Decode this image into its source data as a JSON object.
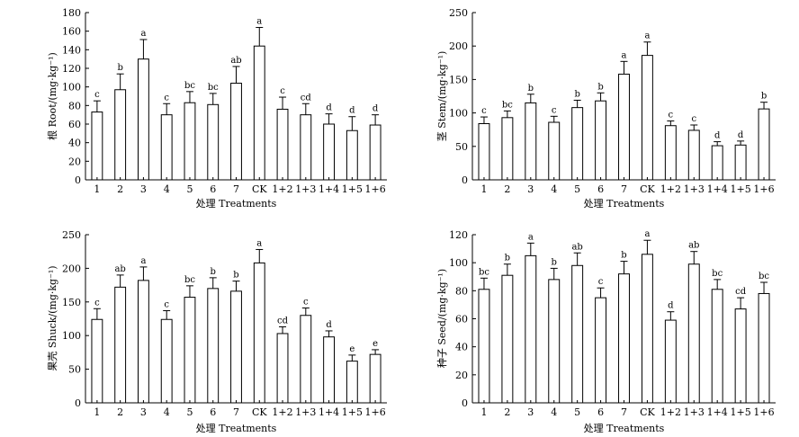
{
  "chart_data": [
    {
      "type": "bar",
      "ylabel": "根 Root/(mg·kg⁻¹)",
      "xlabel": "处理 Treatments",
      "ylim": [
        0,
        180
      ],
      "yticks": [
        0,
        20,
        40,
        60,
        80,
        100,
        120,
        140,
        160,
        180
      ],
      "categories": [
        "1",
        "2",
        "3",
        "4",
        "5",
        "6",
        "7",
        "CK",
        "1+2",
        "1+3",
        "1+4",
        "1+5",
        "1+6"
      ],
      "values": [
        73,
        97,
        130,
        70,
        83,
        81,
        104,
        144,
        76,
        70,
        60,
        53,
        59
      ],
      "errors": [
        12,
        17,
        21,
        12,
        12,
        12,
        18,
        20,
        13,
        12,
        11,
        15,
        11
      ],
      "letters": [
        "c",
        "b",
        "a",
        "c",
        "bc",
        "bc",
        "ab",
        "a",
        "c",
        "cd",
        "d",
        "d",
        "d"
      ]
    },
    {
      "type": "bar",
      "ylabel": "茎 Stem/(mg·kg⁻¹)",
      "xlabel": "处理 Treatments",
      "ylim": [
        0,
        250
      ],
      "yticks": [
        0,
        50,
        100,
        150,
        200,
        250
      ],
      "categories": [
        "1",
        "2",
        "3",
        "4",
        "5",
        "6",
        "7",
        "CK",
        "1+2",
        "1+3",
        "1+4",
        "1+5",
        "1+6"
      ],
      "values": [
        84,
        93,
        115,
        86,
        108,
        118,
        158,
        186,
        81,
        74,
        51,
        52,
        106
      ],
      "errors": [
        10,
        10,
        13,
        9,
        11,
        12,
        19,
        20,
        7,
        8,
        6,
        6,
        10
      ],
      "letters": [
        "c",
        "bc",
        "b",
        "c",
        "b",
        "b",
        "a",
        "a",
        "c",
        "c",
        "d",
        "d",
        "b"
      ]
    },
    {
      "type": "bar",
      "ylabel": "果壳 Shuck/(mg·kg⁻¹)",
      "xlabel": "处理 Treatments",
      "ylim": [
        0,
        250
      ],
      "yticks": [
        0,
        50,
        100,
        150,
        200,
        250
      ],
      "categories": [
        "1",
        "2",
        "3",
        "4",
        "5",
        "6",
        "7",
        "CK",
        "1+2",
        "1+3",
        "1+4",
        "1+5",
        "1+6"
      ],
      "values": [
        124,
        172,
        182,
        124,
        157,
        170,
        166,
        208,
        103,
        130,
        98,
        62,
        72
      ],
      "errors": [
        16,
        18,
        20,
        13,
        17,
        16,
        15,
        20,
        10,
        11,
        9,
        9,
        7
      ],
      "letters": [
        "c",
        "ab",
        "a",
        "c",
        "bc",
        "b",
        "b",
        "a",
        "cd",
        "c",
        "d",
        "e",
        "e"
      ]
    },
    {
      "type": "bar",
      "ylabel": "种子 Seed/(mg·kg⁻¹)",
      "xlabel": "处理 Treatments",
      "ylim": [
        0,
        120
      ],
      "yticks": [
        0,
        20,
        40,
        60,
        80,
        100,
        120
      ],
      "categories": [
        "1",
        "2",
        "3",
        "4",
        "5",
        "6",
        "7",
        "CK",
        "1+2",
        "1+3",
        "1+4",
        "1+5",
        "1+6"
      ],
      "values": [
        81,
        91,
        105,
        88,
        98,
        75,
        92,
        106,
        59,
        99,
        81,
        67,
        78
      ],
      "errors": [
        8,
        8,
        9,
        8,
        9,
        7,
        9,
        10,
        6,
        9,
        7,
        8,
        8
      ],
      "letters": [
        "bc",
        "b",
        "a",
        "b",
        "ab",
        "c",
        "b",
        "a",
        "d",
        "ab",
        "bc",
        "cd",
        "bc"
      ]
    }
  ]
}
